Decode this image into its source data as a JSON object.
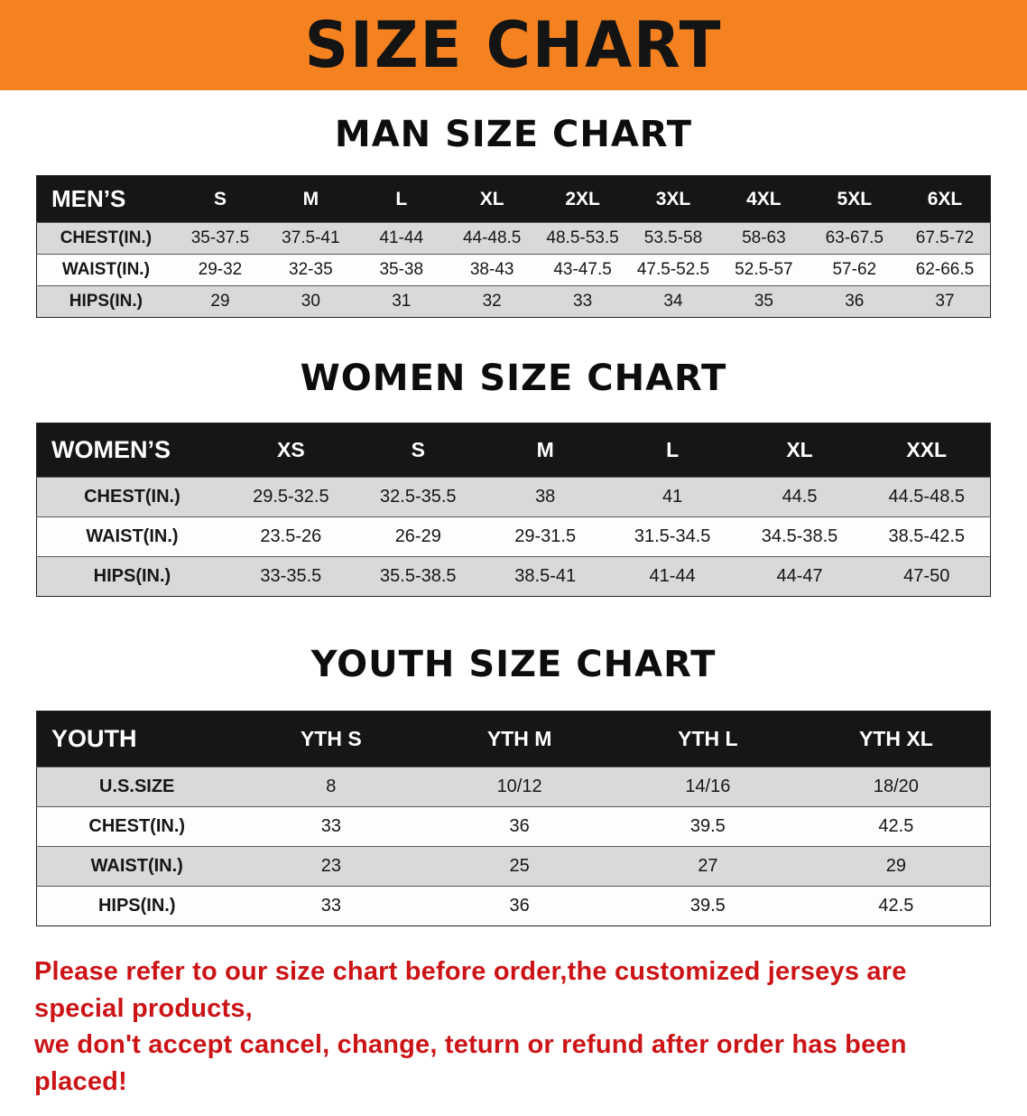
{
  "banner": {
    "title": "SIZE CHART"
  },
  "colors": {
    "banner-bg": "#f58220",
    "header-bg": "#161616",
    "row-alt": "#d9d9d9",
    "note-red": "#cc1417"
  },
  "sections": [
    {
      "id": "men",
      "heading": "MAN SIZE CHART",
      "table": {
        "header": [
          "MEN’S",
          "S",
          "M",
          "L",
          "XL",
          "2XL",
          "3XL",
          "4XL",
          "5XL",
          "6XL"
        ],
        "rows": [
          [
            "CHEST(IN.)",
            "35-37.5",
            "37.5-41",
            "41-44",
            "44-48.5",
            "48.5-53.5",
            "53.5-58",
            "58-63",
            "63-67.5",
            "67.5-72"
          ],
          [
            "WAIST(IN.)",
            "29-32",
            "32-35",
            "35-38",
            "38-43",
            "43-47.5",
            "47.5-52.5",
            "52.5-57",
            "57-62",
            "62-66.5"
          ],
          [
            "HIPS(IN.)",
            "29",
            "30",
            "31",
            "32",
            "33",
            "34",
            "35",
            "36",
            "37"
          ]
        ]
      }
    },
    {
      "id": "women",
      "heading": "WOMEN SIZE CHART",
      "table": {
        "header": [
          "WOMEN’S",
          "XS",
          "S",
          "M",
          "L",
          "XL",
          "XXL"
        ],
        "rows": [
          [
            "CHEST(IN.)",
            "29.5-32.5",
            "32.5-35.5",
            "38",
            "41",
            "44.5",
            "44.5-48.5"
          ],
          [
            "WAIST(IN.)",
            "23.5-26",
            "26-29",
            "29-31.5",
            "31.5-34.5",
            "34.5-38.5",
            "38.5-42.5"
          ],
          [
            "HIPS(IN.)",
            "33-35.5",
            "35.5-38.5",
            "38.5-41",
            "41-44",
            "44-47",
            "47-50"
          ]
        ]
      }
    },
    {
      "id": "youth",
      "heading": "YOUTH SIZE CHART",
      "table": {
        "header": [
          "YOUTH",
          "YTH S",
          "YTH M",
          "YTH L",
          "YTH XL"
        ],
        "rows": [
          [
            "U.S.SIZE",
            "8",
            "10/12",
            "14/16",
            "18/20"
          ],
          [
            "CHEST(IN.)",
            "33",
            "36",
            "39.5",
            "42.5"
          ],
          [
            "WAIST(IN.)",
            "23",
            "25",
            "27",
            "29"
          ],
          [
            "HIPS(IN.)",
            "33",
            "36",
            "39.5",
            "42.5"
          ]
        ]
      }
    }
  ],
  "note": {
    "lines": [
      "Please refer to our size chart before order,the customized jerseys are special products,",
      "we don't accept cancel, change, teturn or refund after order has been placed!"
    ]
  }
}
